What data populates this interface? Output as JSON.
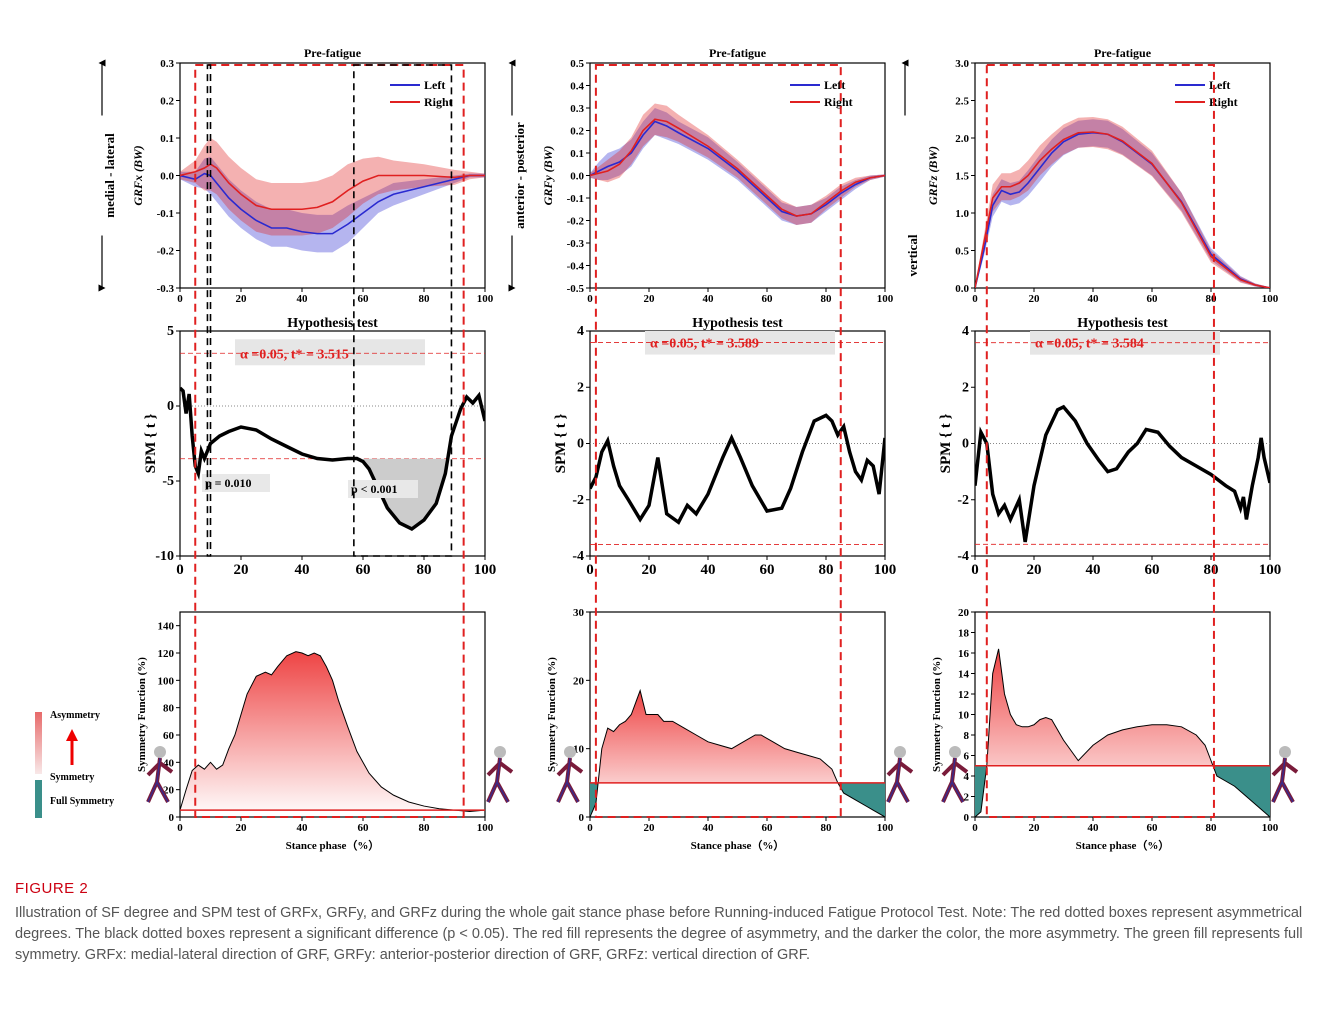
{
  "caption": {
    "label": "FIGURE 2",
    "text": "Illustration of SF degree and SPM test of GRFx, GRFy, and GRFz during the whole gait stance phase before Running-induced Fatigue Protocol Test. Note: The red dotted boxes represent asymmetrical degrees. The black dotted boxes represent a significant difference (p < 0.05). The red fill represents the degree of asymmetry, and the darker the color, the more asymmetry. The green fill represents full symmetry. GRFx: medial-lateral direction of GRF, GRFy: anterior-posterior direction of GRF, GRFz: vertical direction of GRF."
  },
  "colors": {
    "left": "#2a2ad0",
    "right": "#e02020",
    "sig_box": "#000000",
    "asym_box": "#e02020",
    "sym_fill": "#3a8f8a",
    "hypo_bg": "#e6e6e6"
  },
  "legend_scale": {
    "top": "Asymmetry",
    "mid": "Symmetry",
    "bottom": "Full Symmetry"
  },
  "chart_data": [
    {
      "type": "line",
      "title": "Pre-fatigue",
      "ylabel": "GRFx (BW)",
      "side_label": "medial - lateral",
      "xlim": [
        0,
        100
      ],
      "ylim": [
        -0.3,
        0.3
      ],
      "yticks": [
        "0.3",
        "0.2",
        "0.1",
        "0.0",
        "-0.1",
        "-0.2",
        "-0.3"
      ],
      "xticks": [
        "0",
        "20",
        "40",
        "60",
        "80",
        "100"
      ],
      "legend": [
        "Left",
        "Right"
      ],
      "legend_position": "top-right",
      "x": [
        0,
        5,
        8,
        10,
        12,
        16,
        20,
        25,
        30,
        35,
        40,
        45,
        50,
        55,
        60,
        65,
        70,
        80,
        90,
        95,
        100
      ],
      "series": [
        {
          "name": "Left",
          "mean": [
            0,
            -0.01,
            0.005,
            0,
            -0.02,
            -0.06,
            -0.09,
            -0.12,
            -0.14,
            -0.14,
            -0.15,
            -0.155,
            -0.155,
            -0.13,
            -0.1,
            -0.07,
            -0.05,
            -0.03,
            -0.01,
            0,
            0
          ],
          "sd": [
            0.01,
            0.02,
            0.04,
            0.05,
            0.05,
            0.05,
            0.05,
            0.05,
            0.05,
            0.05,
            0.05,
            0.05,
            0.05,
            0.05,
            0.04,
            0.03,
            0.03,
            0.02,
            0.01,
            0.005,
            0.005
          ]
        },
        {
          "name": "Right",
          "mean": [
            0,
            0.01,
            0.02,
            0.03,
            0.02,
            -0.02,
            -0.05,
            -0.08,
            -0.09,
            -0.09,
            -0.09,
            -0.085,
            -0.07,
            -0.04,
            -0.015,
            0,
            0,
            0,
            -0.005,
            0,
            0
          ],
          "sd": [
            0.01,
            0.03,
            0.06,
            0.07,
            0.07,
            0.07,
            0.07,
            0.07,
            0.07,
            0.07,
            0.07,
            0.07,
            0.07,
            0.07,
            0.06,
            0.05,
            0.04,
            0.03,
            0.02,
            0.01,
            0.005
          ]
        }
      ],
      "asym_box": [
        5,
        93
      ],
      "sig_boxes": [
        [
          9,
          10
        ],
        [
          57,
          89
        ]
      ]
    },
    {
      "type": "line",
      "title": "Pre-fatigue",
      "ylabel": "GRFy (BW)",
      "side_label": "anterior - posterior",
      "xlim": [
        0,
        100
      ],
      "ylim": [
        -0.5,
        0.5
      ],
      "yticks": [
        "0.5",
        "0.4",
        "0.3",
        "0.2",
        "0.1",
        "0.0",
        "-0.1",
        "-0.2",
        "-0.3",
        "-0.4",
        "-0.5"
      ],
      "xticks": [
        "0",
        "20",
        "40",
        "60",
        "80",
        "100"
      ],
      "legend": [
        "Left",
        "Right"
      ],
      "legend_position": "top-right",
      "x": [
        0,
        3,
        6,
        10,
        14,
        18,
        22,
        26,
        30,
        40,
        50,
        60,
        65,
        70,
        75,
        80,
        85,
        90,
        95,
        100
      ],
      "series": [
        {
          "name": "Left",
          "mean": [
            0,
            0.02,
            0.04,
            0.06,
            0.1,
            0.18,
            0.24,
            0.22,
            0.19,
            0.12,
            0.02,
            -0.1,
            -0.16,
            -0.18,
            -0.17,
            -0.13,
            -0.08,
            -0.04,
            -0.01,
            0
          ],
          "sd": [
            0.01,
            0.04,
            0.06,
            0.06,
            0.06,
            0.06,
            0.06,
            0.06,
            0.05,
            0.05,
            0.04,
            0.04,
            0.04,
            0.04,
            0.04,
            0.03,
            0.03,
            0.02,
            0.01,
            0.005
          ]
        },
        {
          "name": "Right",
          "mean": [
            0,
            0.01,
            0.02,
            0.05,
            0.11,
            0.2,
            0.25,
            0.24,
            0.21,
            0.13,
            0.03,
            -0.09,
            -0.15,
            -0.18,
            -0.17,
            -0.12,
            -0.07,
            -0.03,
            -0.01,
            0
          ],
          "sd": [
            0.01,
            0.03,
            0.05,
            0.06,
            0.06,
            0.07,
            0.07,
            0.07,
            0.06,
            0.05,
            0.04,
            0.04,
            0.04,
            0.04,
            0.04,
            0.03,
            0.03,
            0.02,
            0.01,
            0.005
          ]
        }
      ],
      "asym_box": [
        2,
        85
      ]
    },
    {
      "type": "line",
      "title": "Pre-fatigue",
      "ylabel": "GRFz (BW)",
      "side_label": "vertical",
      "xlim": [
        0,
        100
      ],
      "ylim": [
        0,
        3.0
      ],
      "yticks": [
        "3.0",
        "2.5",
        "2.0",
        "1.5",
        "1.0",
        "0.5",
        "0.0"
      ],
      "xticks": [
        "0",
        "20",
        "40",
        "60",
        "80",
        "100"
      ],
      "legend": [
        "Left",
        "Right"
      ],
      "legend_position": "top-right",
      "x": [
        0,
        3,
        6,
        9,
        12,
        15,
        18,
        22,
        26,
        30,
        35,
        40,
        45,
        50,
        60,
        70,
        80,
        90,
        95,
        100
      ],
      "series": [
        {
          "name": "Left",
          "mean": [
            0,
            0.5,
            1.1,
            1.3,
            1.25,
            1.28,
            1.4,
            1.6,
            1.8,
            1.95,
            2.05,
            2.07,
            2.05,
            1.95,
            1.65,
            1.15,
            0.45,
            0.12,
            0.04,
            0
          ],
          "sd": [
            0.02,
            0.08,
            0.15,
            0.15,
            0.15,
            0.15,
            0.17,
            0.18,
            0.18,
            0.18,
            0.18,
            0.18,
            0.18,
            0.17,
            0.15,
            0.12,
            0.08,
            0.04,
            0.02,
            0.01
          ]
        },
        {
          "name": "Right",
          "mean": [
            0,
            0.6,
            1.2,
            1.35,
            1.35,
            1.4,
            1.5,
            1.7,
            1.85,
            1.98,
            2.07,
            2.08,
            2.05,
            1.96,
            1.66,
            1.14,
            0.42,
            0.11,
            0.04,
            0
          ],
          "sd": [
            0.02,
            0.1,
            0.18,
            0.18,
            0.18,
            0.18,
            0.2,
            0.2,
            0.2,
            0.2,
            0.2,
            0.2,
            0.2,
            0.19,
            0.17,
            0.13,
            0.08,
            0.04,
            0.02,
            0.01
          ]
        }
      ],
      "asym_box": [
        4,
        81
      ]
    },
    {
      "type": "line",
      "title": "Hypothesis test",
      "ylabel": "SPM { t }",
      "xlim": [
        0,
        100
      ],
      "ylim": [
        -10,
        5
      ],
      "yticks": [
        "5",
        "0",
        "-5",
        "-10"
      ],
      "xticks": [
        "0",
        "20",
        "40",
        "60",
        "80",
        "100"
      ],
      "threshold_label": "α =0.05,    t* = 3.515",
      "threshold": 3.515,
      "x": [
        0,
        1,
        2,
        3,
        4,
        5,
        6,
        7,
        8,
        10,
        13,
        16,
        20,
        25,
        30,
        35,
        40,
        45,
        50,
        55,
        58,
        60,
        62,
        65,
        68,
        72,
        76,
        80,
        84,
        87,
        89,
        92,
        94,
        96,
        98,
        100
      ],
      "t": [
        1.2,
        1,
        -0.5,
        0.8,
        -2,
        -4,
        -4.5,
        -3,
        -3.5,
        -2.5,
        -2,
        -1.7,
        -1.4,
        -1.6,
        -2.2,
        -2.7,
        -3.2,
        -3.5,
        -3.6,
        -3.5,
        -3.5,
        -3.7,
        -4.2,
        -5.5,
        -6.8,
        -7.8,
        -8.2,
        -7.6,
        -6.5,
        -4.5,
        -2,
        -0.2,
        0.6,
        0.2,
        0.7,
        -1
      ],
      "clusters": [
        {
          "label": "p = 0.010",
          "range": [
            5,
            8
          ]
        },
        {
          "label": "p < 0.001",
          "range": [
            57,
            89
          ]
        }
      ]
    },
    {
      "type": "line",
      "title": "Hypothesis test",
      "ylabel": "SPM { t }",
      "xlim": [
        0,
        100
      ],
      "ylim": [
        -4,
        4
      ],
      "yticks": [
        "4",
        "2",
        "0",
        "-2",
        "-4"
      ],
      "xticks": [
        "0",
        "20",
        "40",
        "60",
        "80",
        "100"
      ],
      "threshold_label": "α =0.05,    t* = 3.589",
      "threshold": 3.589,
      "x": [
        0,
        2,
        4,
        6,
        8,
        10,
        13,
        17,
        20,
        23,
        26,
        30,
        33,
        36,
        40,
        45,
        48,
        51,
        55,
        60,
        65,
        68,
        72,
        76,
        80,
        82,
        84,
        86,
        88,
        90,
        92,
        94,
        96,
        98,
        100
      ],
      "t": [
        -1.6,
        -1.2,
        -0.3,
        0.1,
        -0.8,
        -1.5,
        -2,
        -2.7,
        -2.2,
        -0.5,
        -2.5,
        -2.8,
        -2.2,
        -2.5,
        -1.8,
        -0.5,
        0.2,
        -0.5,
        -1.5,
        -2.4,
        -2.3,
        -1.6,
        -0.3,
        0.8,
        1,
        0.8,
        0.3,
        0.6,
        -0.3,
        -1,
        -1.3,
        -0.6,
        -0.8,
        -1.8,
        0.2
      ],
      "clusters": []
    },
    {
      "type": "line",
      "title": "Hypothesis test",
      "ylabel": "SPM { t }",
      "xlim": [
        0,
        100
      ],
      "ylim": [
        -4,
        4
      ],
      "yticks": [
        "4",
        "2",
        "0",
        "-2",
        "-4"
      ],
      "xticks": [
        "0",
        "20",
        "40",
        "60",
        "80",
        "100"
      ],
      "threshold_label": "α =0.05,    t* = 3.584",
      "threshold": 3.584,
      "x": [
        0,
        2,
        4,
        6,
        8,
        10,
        12,
        15,
        17,
        20,
        24,
        28,
        30,
        34,
        38,
        42,
        45,
        48,
        52,
        55,
        58,
        62,
        66,
        70,
        75,
        80,
        85,
        88,
        90,
        91,
        92,
        94,
        96,
        97,
        98,
        100
      ],
      "t": [
        -1.5,
        0.4,
        0,
        -1.8,
        -2.5,
        -2.2,
        -2.7,
        -2,
        -3.5,
        -1.5,
        0.3,
        1.2,
        1.3,
        0.8,
        0,
        -0.6,
        -1,
        -0.9,
        -0.3,
        0,
        0.5,
        0.4,
        -0.1,
        -0.5,
        -0.8,
        -1.1,
        -1.5,
        -1.7,
        -2.3,
        -1.9,
        -2.7,
        -1.5,
        -0.5,
        0.2,
        -0.5,
        -1.4
      ],
      "clusters": []
    },
    {
      "type": "area",
      "ylabel": "Symmetry Function  (%)",
      "xlabel": "Stance phase（%）",
      "xlim": [
        0,
        100
      ],
      "ylim": [
        0,
        150
      ],
      "yticks": [
        "140",
        "120",
        "100",
        "80",
        "60",
        "40",
        "20",
        "0"
      ],
      "xticks": [
        "0",
        "20",
        "40",
        "60",
        "80",
        "100"
      ],
      "threshold": 5,
      "x": [
        0,
        2,
        4,
        6,
        8,
        10,
        12,
        14,
        16,
        18,
        20,
        22,
        25,
        28,
        30,
        32,
        35,
        38,
        40,
        42,
        44,
        46,
        48,
        50,
        52,
        55,
        58,
        62,
        66,
        70,
        75,
        80,
        85,
        90,
        95,
        100
      ],
      "sf": [
        5,
        20,
        34,
        38,
        35,
        40,
        35,
        38,
        50,
        60,
        75,
        90,
        103,
        106,
        104,
        110,
        118,
        121,
        120,
        118,
        120,
        118,
        110,
        100,
        85,
        66,
        48,
        32,
        22,
        16,
        11,
        8,
        6,
        5,
        4,
        5
      ]
    },
    {
      "type": "area",
      "ylabel": "Symmetry Function  (%)",
      "xlabel": "Stance phase（%）",
      "xlim": [
        0,
        100
      ],
      "ylim": [
        0,
        30
      ],
      "yticks": [
        "30",
        "20",
        "10",
        "0"
      ],
      "xticks": [
        "0",
        "20",
        "40",
        "60",
        "80",
        "100"
      ],
      "threshold": 5,
      "x": [
        0,
        2,
        4,
        6,
        8,
        10,
        12,
        14,
        17,
        19,
        21,
        23,
        25,
        28,
        32,
        36,
        40,
        44,
        48,
        52,
        56,
        58,
        62,
        66,
        70,
        74,
        78,
        82,
        84,
        86,
        90,
        94,
        96,
        98,
        100
      ],
      "sf": [
        0,
        2,
        10,
        13,
        12.5,
        13.5,
        14,
        15,
        18.5,
        15,
        15,
        15,
        14,
        14,
        13,
        12,
        11,
        10.5,
        10,
        11,
        12,
        12,
        11,
        10,
        9.5,
        9,
        8.5,
        7,
        5,
        3.5,
        2.5,
        1.5,
        1,
        0.5,
        0
      ]
    },
    {
      "type": "area",
      "ylabel": "Symmetry Function  (%)",
      "xlabel": "Stance phase（%）",
      "xlim": [
        0,
        100
      ],
      "ylim": [
        0,
        20
      ],
      "yticks": [
        "20",
        "18",
        "16",
        "14",
        "12",
        "10",
        "8",
        "6",
        "4",
        "2",
        "0"
      ],
      "xticks": [
        "0",
        "20",
        "40",
        "60",
        "80",
        "100"
      ],
      "threshold": 5,
      "x": [
        0,
        2,
        4,
        6,
        8,
        10,
        12,
        14,
        16,
        18,
        20,
        22,
        24,
        26,
        28,
        30,
        35,
        40,
        45,
        50,
        55,
        60,
        65,
        70,
        75,
        78,
        80,
        82,
        85,
        88,
        92,
        96,
        100
      ],
      "sf": [
        0,
        0.5,
        5,
        14,
        16.4,
        12,
        10,
        9,
        8.8,
        8.8,
        9,
        9.5,
        9.7,
        9.5,
        8.5,
        7.5,
        5.5,
        7,
        8,
        8.5,
        8.8,
        9,
        9,
        8.8,
        8,
        7,
        5.5,
        4,
        3.5,
        3,
        2,
        1,
        0
      ]
    }
  ]
}
